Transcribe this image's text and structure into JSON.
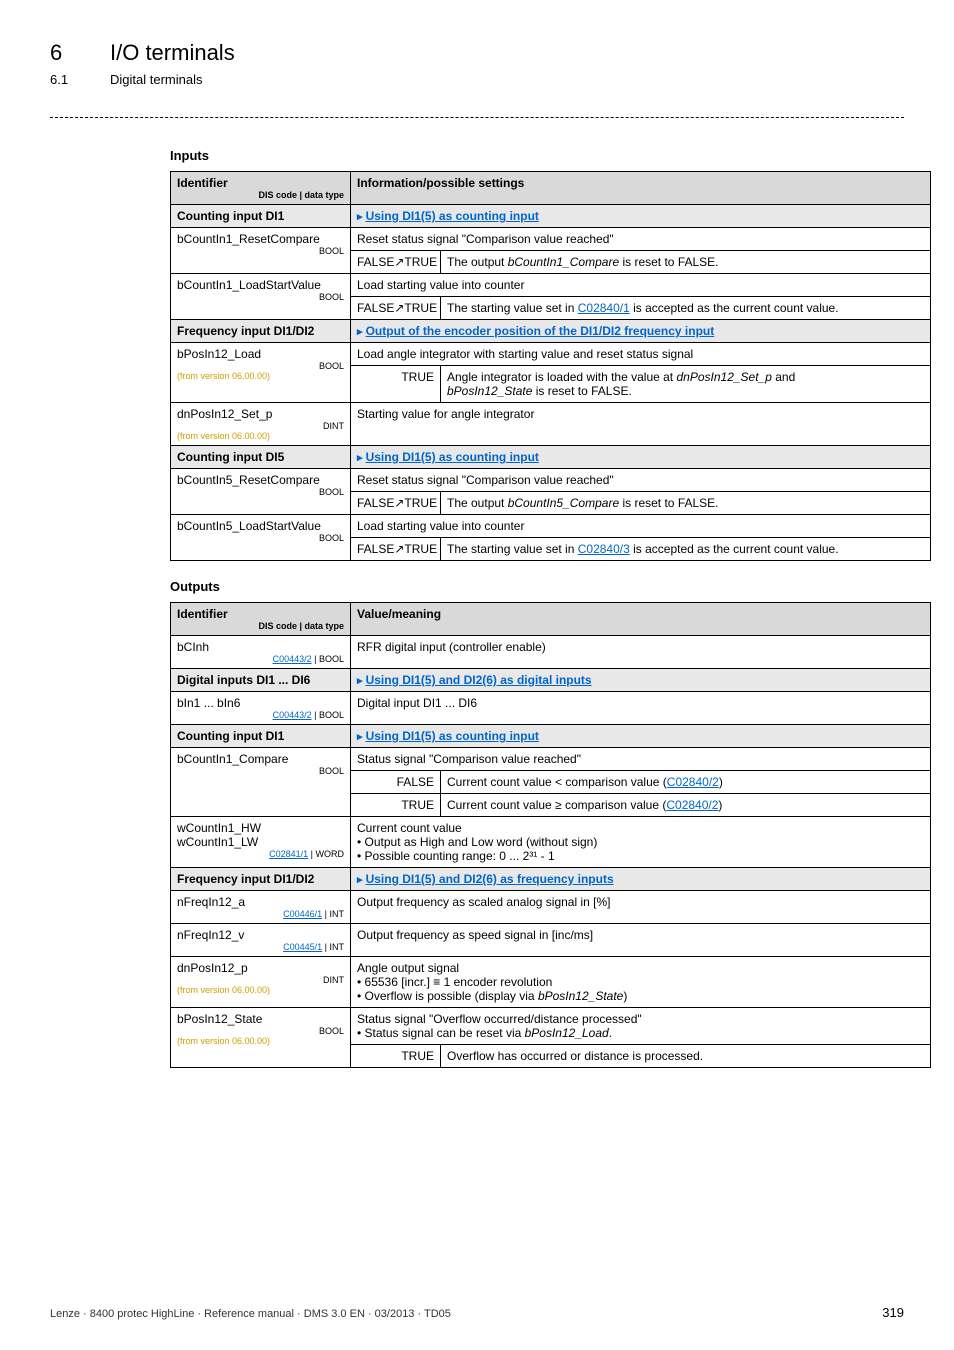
{
  "header": {
    "num": "6",
    "title": "I/O terminals",
    "subnum": "6.1",
    "subtitle": "Digital terminals"
  },
  "inputs_heading": "Inputs",
  "outputs_heading": "Outputs",
  "dis_label": "DIS code | data type",
  "tbl1": {
    "h1": "Identifier",
    "h2": "Information/possible settings",
    "rows": [
      {
        "kind": "subhdr",
        "c1": "Counting input DI1",
        "c2_link": "Using DI1(5) as counting input"
      },
      {
        "kind": "name",
        "name": "bCountIn1_ResetCompare",
        "type": "BOOL",
        "desc": "Reset status signal \"Comparison value reached\""
      },
      {
        "kind": "kv",
        "k": "FALSE↗TRUE",
        "v_pre": "The output ",
        "v_ital": "bCountIn1_Compare",
        "v_post": " is reset to FALSE."
      },
      {
        "kind": "name",
        "name": "bCountIn1_LoadStartValue",
        "type": "BOOL",
        "desc": "Load starting value into counter"
      },
      {
        "kind": "kv",
        "k": "FALSE↗TRUE",
        "v_pre": "The starting value set in ",
        "v_link": "C02840/1",
        "v_post": " is accepted as the current count value."
      },
      {
        "kind": "subhdr",
        "c1": "Frequency input DI1/DI2",
        "c2_link": "Output of the encoder position of the DI1/DI2 frequency input"
      },
      {
        "kind": "name2",
        "name": "bPosIn12_Load",
        "type": "BOOL",
        "src": "(from version 06.00.00)",
        "desc": "Load angle integrator with starting value and reset status signal"
      },
      {
        "kind": "kv",
        "k": "TRUE",
        "v_pre": "Angle integrator is loaded with the value at ",
        "v_ital": "dnPosIn12_Set_p",
        "v_post": " and",
        "v_pre2": "",
        "v_ital2": "bPosIn12_State",
        "v_post2": " is reset to FALSE."
      },
      {
        "kind": "name3",
        "name": "dnPosIn12_Set_p",
        "type": "DINT",
        "src": "(from version 06.00.00)",
        "desc": "Starting value for angle integrator"
      },
      {
        "kind": "subhdr",
        "c1": "Counting input DI5",
        "c2_link": "Using DI1(5) as counting input"
      },
      {
        "kind": "name",
        "name": "bCountIn5_ResetCompare",
        "type": "BOOL",
        "desc": "Reset status signal \"Comparison value reached\""
      },
      {
        "kind": "kv",
        "k": "FALSE↗TRUE",
        "v_pre": "The output ",
        "v_ital": "bCountIn5_Compare",
        "v_post": " is reset to FALSE."
      },
      {
        "kind": "name",
        "name": "bCountIn5_LoadStartValue",
        "type": "BOOL",
        "desc": "Load starting value into counter"
      },
      {
        "kind": "kv",
        "k": "FALSE↗TRUE",
        "v_pre": "The starting value set in ",
        "v_link": "C02840/3",
        "v_post": " is accepted as the current count value."
      }
    ]
  },
  "tbl2": {
    "h1": "Identifier",
    "h2": "Value/meaning",
    "rows": [
      {
        "kind": "name",
        "name": "bCInh",
        "code": "C00443/2",
        "ctype": "BOOL",
        "desc": "RFR digital input (controller enable)"
      },
      {
        "kind": "subhdr",
        "c1": "Digital inputs DI1 ... DI6",
        "c2_link": "Using DI1(5) and DI2(6) as digital inputs"
      },
      {
        "kind": "name",
        "name": "bIn1 ... bIn6",
        "code": "C00443/2",
        "ctype": "BOOL",
        "desc": "Digital input DI1 ... DI6"
      },
      {
        "kind": "subhdr",
        "c1": "Counting input DI1",
        "c2_link": "Using DI1(5) as counting input"
      },
      {
        "kind": "nameonly",
        "name": "bCountIn1_Compare",
        "type": "BOOL",
        "desc": "Status signal \"Comparison value reached\""
      },
      {
        "kind": "kv",
        "k": "FALSE",
        "v_pre": "Current count value < comparison value (",
        "v_link": "C02840/2",
        "v_post": ")"
      },
      {
        "kind": "kv",
        "k": "TRUE",
        "v_pre": "Current count value ≥ comparison value (",
        "v_link": "C02840/2",
        "v_post": ")"
      },
      {
        "kind": "multi",
        "name1": "wCountIn1_HW",
        "name2": "wCountIn1_LW",
        "code": "C02841/1",
        "ctype": "WORD",
        "lines": [
          "Current count value",
          "• Output as High and Low word (without sign)",
          "• Possible counting range: 0 ... 2³¹ - 1"
        ]
      },
      {
        "kind": "subhdr",
        "c1": "Frequency input DI1/DI2",
        "c2_link": "Using DI1(5) and DI2(6) as frequency inputs"
      },
      {
        "kind": "name",
        "name": "nFreqIn12_a",
        "code": "C00446/1",
        "ctype": "INT",
        "desc": "Output frequency as scaled analog signal in [%]"
      },
      {
        "kind": "name",
        "name": "nFreqIn12_v",
        "code": "C00445/1",
        "ctype": "INT",
        "desc": "Output frequency as speed signal in [inc/ms]"
      },
      {
        "kind": "multi2",
        "name": "dnPosIn12_p",
        "type": "DINT",
        "src": "(from version 06.00.00)",
        "lines": [
          "Angle output signal",
          "• 65536 [incr.] ≡ 1 encoder revolution"
        ],
        "line3_pre": "• Overflow is possible (display via ",
        "line3_ital": "bPosIn12_State",
        "line3_post": ")"
      },
      {
        "kind": "multi3",
        "name": "bPosIn12_State",
        "type": "BOOL",
        "src": "(from version 06.00.00)",
        "line1": "Status signal \"Overflow occurred/distance processed\"",
        "line2_pre": "• Status signal can be reset via ",
        "line2_ital": "bPosIn12_Load",
        "line2_post": "."
      },
      {
        "kind": "kv",
        "k": "TRUE",
        "v_pre": "Overflow has occurred or distance is processed.",
        "v_link": "",
        "v_post": ""
      }
    ]
  },
  "footer": {
    "left": "Lenze · 8400 protec HighLine · Reference manual · DMS 3.0 EN · 03/2013 · TD05",
    "page": "319"
  }
}
